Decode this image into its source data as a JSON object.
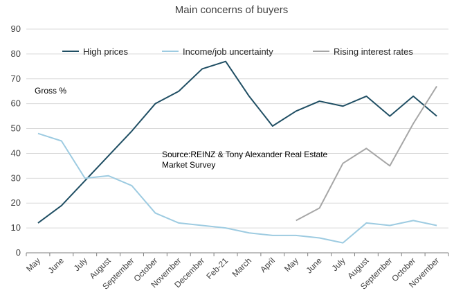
{
  "chart_data": {
    "type": "line",
    "title": "Main concerns of buyers",
    "ylabel_note": "Gross %",
    "source_note": "Source:REINZ & Tony Alexander Real Estate Market Survey",
    "categories": [
      "May",
      "June",
      "July",
      "August",
      "September",
      "October",
      "November",
      "December",
      "Feb-21",
      "March",
      "April",
      "May",
      "June",
      "July",
      "August",
      "September",
      "October",
      "November"
    ],
    "ylim": [
      0,
      90
    ],
    "yticks": [
      0,
      10,
      20,
      30,
      40,
      50,
      60,
      70,
      80,
      90
    ],
    "grid": true,
    "legend_position": "top",
    "series": [
      {
        "name": "High prices",
        "color": "#1f4e63",
        "values": [
          12,
          19,
          29,
          39,
          49,
          60,
          65,
          74,
          77,
          63,
          51,
          57,
          61,
          59,
          63,
          55,
          63,
          55
        ]
      },
      {
        "name": "Income/job uncertainty",
        "color": "#9dcbe1",
        "values": [
          48,
          45,
          30,
          31,
          27,
          16,
          12,
          11,
          10,
          8,
          7,
          7,
          6,
          4,
          12,
          11,
          13,
          11
        ]
      },
      {
        "name": "Rising interest rates",
        "color": "#a6a6a6",
        "values": [
          null,
          null,
          null,
          null,
          null,
          null,
          null,
          null,
          null,
          null,
          null,
          13,
          18,
          36,
          42,
          35,
          52,
          67
        ]
      }
    ]
  }
}
